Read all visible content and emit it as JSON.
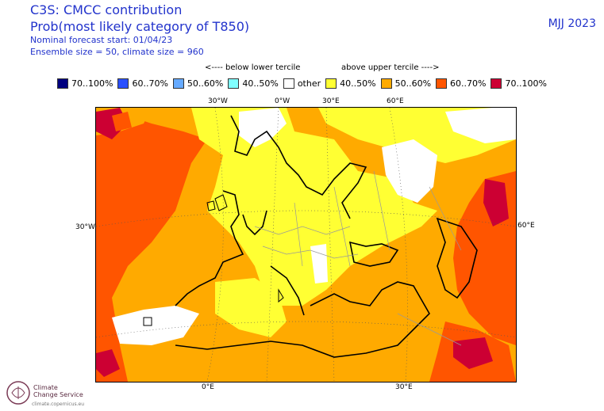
{
  "header": {
    "title_line1": "C3S: CMCC contribution",
    "title_line2": "Prob(most likely category of T850)",
    "meta_line1": "Nominal forecast start: 01/04/23",
    "meta_line2": "Ensemble size = 50, climate size = 960",
    "period": "MJJ 2023"
  },
  "legend": {
    "below_heading": "<---- below lower tercile",
    "above_heading": "above upper tercile ---->",
    "items": [
      {
        "label": "70..100%",
        "color": "#00007f"
      },
      {
        "label": "60..70%",
        "color": "#2a50ff"
      },
      {
        "label": "50..60%",
        "color": "#66aaff"
      },
      {
        "label": "40..50%",
        "color": "#80ffff"
      },
      {
        "label": "other",
        "color": "#ffffff"
      },
      {
        "label": "40..50%",
        "color": "#ffff33"
      },
      {
        "label": "50..60%",
        "color": "#ffaa00"
      },
      {
        "label": "60..70%",
        "color": "#ff5500"
      },
      {
        "label": "70..100%",
        "color": "#cc0033"
      }
    ]
  },
  "axes": {
    "top_30w": "30°W",
    "top_0w": "0°W",
    "top_30e": "30°E",
    "top_60e": "60°E",
    "left_30w": "30°W",
    "right_60e": "60°E",
    "bottom_0e": "0°E",
    "bottom_30e": "30°E"
  },
  "logo": {
    "line1": "Climate",
    "line2": "Change Service",
    "url": "climate.copernicus.eu"
  }
}
